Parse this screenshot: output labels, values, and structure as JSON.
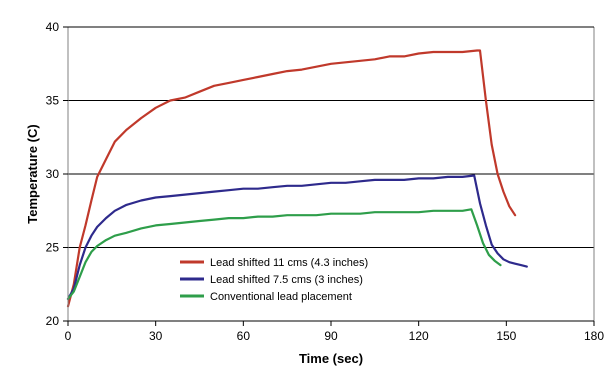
{
  "chart_data": {
    "type": "line",
    "title": "",
    "xlabel": "Time (sec)",
    "ylabel": "Temperature (C)",
    "xlim": [
      0,
      180
    ],
    "ylim": [
      20,
      40
    ],
    "xticks": [
      0,
      30,
      60,
      90,
      120,
      150,
      180
    ],
    "yticks": [
      20,
      25,
      30,
      35,
      40
    ],
    "grid": "horizontal",
    "legend_position": "lower-center",
    "series": [
      {
        "name": "Lead shifted 11 cms (4.3 inches)",
        "color": "#c0392b",
        "x": [
          0,
          2,
          4,
          6,
          8,
          10,
          13,
          16,
          20,
          25,
          30,
          35,
          40,
          45,
          50,
          55,
          60,
          65,
          70,
          75,
          80,
          85,
          90,
          95,
          100,
          105,
          110,
          115,
          120,
          125,
          130,
          135,
          140,
          141,
          143,
          145,
          147,
          149,
          151,
          153
        ],
        "y": [
          21.0,
          22.5,
          25.0,
          26.5,
          28.2,
          29.8,
          31.0,
          32.2,
          33.0,
          33.8,
          34.5,
          35.0,
          35.2,
          35.6,
          36.0,
          36.2,
          36.4,
          36.6,
          36.8,
          37.0,
          37.1,
          37.3,
          37.5,
          37.6,
          37.7,
          37.8,
          38.0,
          38.0,
          38.2,
          38.3,
          38.3,
          38.3,
          38.4,
          38.4,
          35.0,
          32.0,
          30.0,
          28.8,
          27.8,
          27.2
        ]
      },
      {
        "name": "Lead shifted 7.5 cms (3 inches)",
        "color": "#2e2a8c",
        "x": [
          0,
          2,
          4,
          6,
          8,
          10,
          13,
          16,
          20,
          25,
          30,
          35,
          40,
          45,
          50,
          55,
          60,
          65,
          70,
          75,
          80,
          85,
          90,
          95,
          100,
          105,
          110,
          115,
          120,
          125,
          130,
          135,
          139,
          141,
          143,
          145,
          147,
          149,
          151,
          153,
          155,
          157
        ],
        "y": [
          21.5,
          22.2,
          23.8,
          25.0,
          25.8,
          26.4,
          27.0,
          27.5,
          27.9,
          28.2,
          28.4,
          28.5,
          28.6,
          28.7,
          28.8,
          28.9,
          29.0,
          29.0,
          29.1,
          29.2,
          29.2,
          29.3,
          29.4,
          29.4,
          29.5,
          29.6,
          29.6,
          29.6,
          29.7,
          29.7,
          29.8,
          29.8,
          29.9,
          28.0,
          26.5,
          25.2,
          24.6,
          24.2,
          24.0,
          23.9,
          23.8,
          23.7
        ]
      },
      {
        "name": "Conventional lead placement",
        "color": "#2e9e4a",
        "x": [
          0,
          2,
          4,
          6,
          8,
          10,
          13,
          16,
          20,
          25,
          30,
          35,
          40,
          45,
          50,
          55,
          60,
          65,
          70,
          75,
          80,
          85,
          90,
          95,
          100,
          105,
          110,
          115,
          120,
          125,
          130,
          135,
          138,
          140,
          142,
          144,
          146,
          148
        ],
        "y": [
          21.5,
          22.0,
          23.0,
          24.0,
          24.7,
          25.1,
          25.5,
          25.8,
          26.0,
          26.3,
          26.5,
          26.6,
          26.7,
          26.8,
          26.9,
          27.0,
          27.0,
          27.1,
          27.1,
          27.2,
          27.2,
          27.2,
          27.3,
          27.3,
          27.3,
          27.4,
          27.4,
          27.4,
          27.4,
          27.5,
          27.5,
          27.5,
          27.6,
          26.5,
          25.3,
          24.5,
          24.1,
          23.8
        ]
      }
    ]
  }
}
